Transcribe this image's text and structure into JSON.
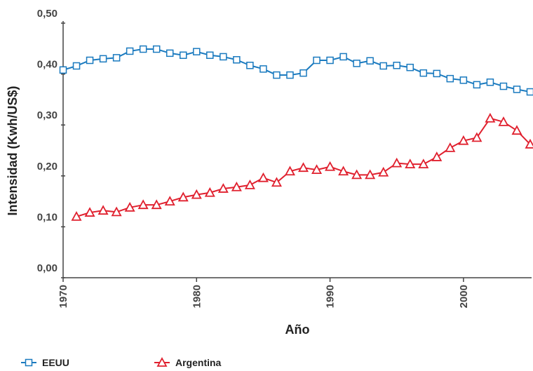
{
  "chart_data": {
    "type": "line",
    "y_label": "Intensidad (Kwh/US$)",
    "x_label": "Año",
    "x": [
      1970,
      1971,
      1972,
      1973,
      1974,
      1975,
      1976,
      1977,
      1978,
      1979,
      1980,
      1981,
      1982,
      1983,
      1984,
      1985,
      1986,
      1987,
      1988,
      1989,
      1990,
      1991,
      1992,
      1993,
      1994,
      1995,
      1996,
      1997,
      1998,
      1999,
      2000,
      2001,
      2002,
      2003,
      2004,
      2005
    ],
    "series": [
      {
        "name": "EEUU",
        "color": "#1a7abf",
        "marker": "square",
        "values": [
          0.408,
          0.416,
          0.427,
          0.43,
          0.432,
          0.445,
          0.449,
          0.449,
          0.441,
          0.437,
          0.444,
          0.437,
          0.434,
          0.428,
          0.417,
          0.41,
          0.398,
          0.398,
          0.402,
          0.427,
          0.427,
          0.434,
          0.421,
          0.426,
          0.416,
          0.417,
          0.413,
          0.402,
          0.401,
          0.391,
          0.388,
          0.379,
          0.384,
          0.376,
          0.37,
          0.365
        ]
      },
      {
        "name": "Argentina",
        "color": "#e0202e",
        "marker": "triangle",
        "values": [
          null,
          0.12,
          0.128,
          0.132,
          0.129,
          0.138,
          0.143,
          0.143,
          0.15,
          0.158,
          0.163,
          0.167,
          0.175,
          0.178,
          0.182,
          0.196,
          0.187,
          0.209,
          0.216,
          0.212,
          0.218,
          0.209,
          0.202,
          0.202,
          0.207,
          0.225,
          0.223,
          0.223,
          0.237,
          0.255,
          0.269,
          0.275,
          0.313,
          0.306,
          0.289,
          0.262
        ]
      }
    ],
    "xlim": [
      1970,
      2005
    ],
    "xticks": [
      1970,
      1980,
      1990,
      2000
    ],
    "ylim": [
      0,
      0.5
    ],
    "yticks": [
      {
        "value": 0,
        "label": "0,00"
      },
      {
        "value": 0.1,
        "label": "0,10"
      },
      {
        "value": 0.2,
        "label": "0,20"
      },
      {
        "value": 0.3,
        "label": "0,30"
      },
      {
        "value": 0.4,
        "label": "0,40"
      },
      {
        "value": 0.5,
        "label": "0,50"
      }
    ]
  }
}
